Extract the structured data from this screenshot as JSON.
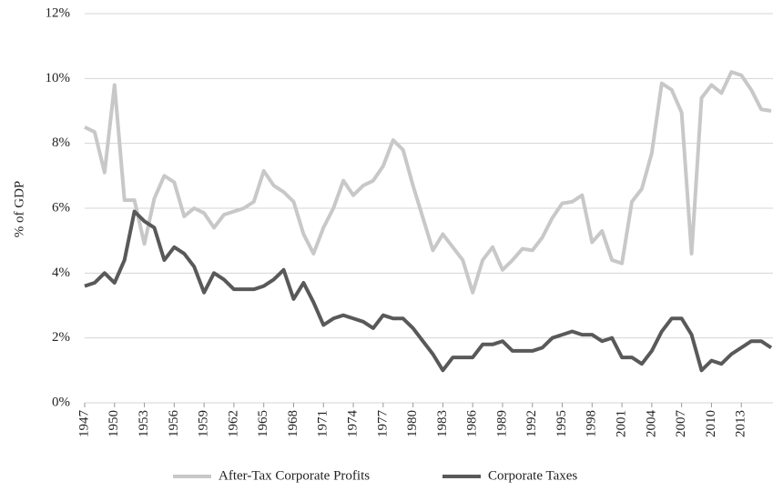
{
  "chart_data": {
    "type": "line",
    "y_label": "% of GDP",
    "x": [
      1947,
      1948,
      1949,
      1950,
      1951,
      1952,
      1953,
      1954,
      1955,
      1956,
      1957,
      1958,
      1959,
      1960,
      1961,
      1962,
      1963,
      1964,
      1965,
      1966,
      1967,
      1968,
      1969,
      1970,
      1971,
      1972,
      1973,
      1974,
      1975,
      1976,
      1977,
      1978,
      1979,
      1980,
      1981,
      1982,
      1983,
      1984,
      1985,
      1986,
      1987,
      1988,
      1989,
      1990,
      1991,
      1992,
      1993,
      1994,
      1995,
      1996,
      1997,
      1998,
      1999,
      2000,
      2001,
      2002,
      2003,
      2004,
      2005,
      2006,
      2007,
      2008,
      2009,
      2010,
      2011,
      2012,
      2013,
      2014,
      2015,
      2016
    ],
    "xlim": [
      1947,
      2016
    ],
    "xticks": [
      1947,
      1950,
      1953,
      1956,
      1959,
      1962,
      1965,
      1968,
      1971,
      1974,
      1977,
      1980,
      1983,
      1986,
      1989,
      1992,
      1995,
      1998,
      2001,
      2004,
      2007,
      2010,
      2013
    ],
    "ylim": [
      0,
      12
    ],
    "yticks": [
      {
        "value": 0,
        "label": "0%"
      },
      {
        "value": 2,
        "label": "2%"
      },
      {
        "value": 4,
        "label": "4%"
      },
      {
        "value": 6,
        "label": "6%"
      },
      {
        "value": 8,
        "label": "8%"
      },
      {
        "value": 10,
        "label": "10%"
      },
      {
        "value": 12,
        "label": "12%"
      }
    ],
    "grid": true,
    "legend": "bottom",
    "series": [
      {
        "name": "After-Tax Corporate Profits",
        "color": "#c8c8c8",
        "values": [
          8.5,
          8.35,
          7.1,
          9.8,
          6.25,
          6.25,
          4.9,
          6.3,
          7.0,
          6.8,
          5.75,
          6.0,
          5.85,
          5.4,
          5.8,
          5.9,
          6.0,
          6.2,
          7.15,
          6.7,
          6.5,
          6.2,
          5.2,
          4.6,
          5.4,
          6.0,
          6.85,
          6.4,
          6.7,
          6.85,
          7.3,
          8.1,
          7.8,
          6.7,
          5.7,
          4.7,
          5.2,
          4.8,
          4.4,
          3.4,
          4.4,
          4.8,
          4.1,
          4.4,
          4.75,
          4.7,
          5.1,
          5.7,
          6.15,
          6.2,
          6.4,
          4.95,
          5.3,
          4.4,
          4.3,
          6.2,
          6.6,
          7.7,
          9.85,
          9.65,
          8.95,
          4.6,
          9.4,
          9.8,
          9.55,
          10.2,
          10.1,
          9.65,
          9.05,
          9.0
        ]
      },
      {
        "name": "Corporate Taxes",
        "color": "#595959",
        "values": [
          3.6,
          3.7,
          4.0,
          3.7,
          4.4,
          5.9,
          5.6,
          5.4,
          4.4,
          4.8,
          4.6,
          4.2,
          3.4,
          4.0,
          3.8,
          3.5,
          3.5,
          3.5,
          3.6,
          3.8,
          4.1,
          3.2,
          3.7,
          3.1,
          2.4,
          2.6,
          2.7,
          2.6,
          2.5,
          2.3,
          2.7,
          2.6,
          2.6,
          2.3,
          1.9,
          1.5,
          1.0,
          1.4,
          1.4,
          1.4,
          1.8,
          1.8,
          1.9,
          1.6,
          1.6,
          1.6,
          1.7,
          2.0,
          2.1,
          2.2,
          2.1,
          2.1,
          1.9,
          2.0,
          1.4,
          1.4,
          1.2,
          1.6,
          2.2,
          2.6,
          2.6,
          2.1,
          1.0,
          1.3,
          1.2,
          1.5,
          1.7,
          1.9,
          1.9,
          1.7
        ]
      }
    ]
  }
}
